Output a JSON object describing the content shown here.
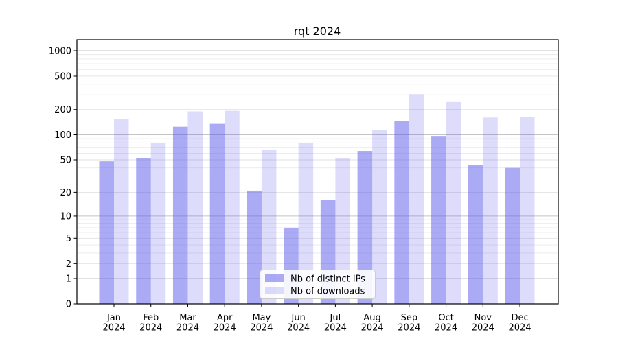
{
  "chart_data": {
    "type": "bar",
    "title": "rqt 2024",
    "categories": [
      "Jan",
      "Feb",
      "Mar",
      "Apr",
      "May",
      "Jun",
      "Jul",
      "Aug",
      "Sep",
      "Oct",
      "Nov",
      "Dec"
    ],
    "year_label": "2024",
    "series": [
      {
        "name": "Nb of distinct IPs",
        "color": "#5555eb",
        "opacity": 0.5,
        "values": [
          48,
          52,
          125,
          135,
          21,
          7,
          16,
          64,
          147,
          97,
          43,
          40
        ]
      },
      {
        "name": "Nb of downloads",
        "color": "#5555eb",
        "opacity": 0.2,
        "values": [
          155,
          80,
          190,
          193,
          66,
          80,
          52,
          115,
          305,
          250,
          161,
          165
        ]
      }
    ],
    "xlabel": "",
    "ylabel": "",
    "y_scale": "symlog",
    "ylim": [
      0,
      1350
    ],
    "y_ticks": [
      0,
      1,
      2,
      5,
      10,
      20,
      50,
      100,
      200,
      500,
      1000
    ],
    "y_minor_ticks": [
      3,
      4,
      6,
      7,
      8,
      9,
      30,
      40,
      60,
      70,
      80,
      90,
      300,
      400,
      600,
      700,
      800,
      900
    ],
    "grid": "horizontal, major and minor",
    "legend_position": "lower center",
    "colors": {
      "bar_base": "#5555eb",
      "grid_major": "#c4c4c4",
      "grid_minor": "#eaeaea",
      "grid_labeled_minor": "#e2e2e2",
      "spine": "#000000",
      "legend_border": "#cccccc",
      "legend_bg": "#ffffff"
    }
  }
}
